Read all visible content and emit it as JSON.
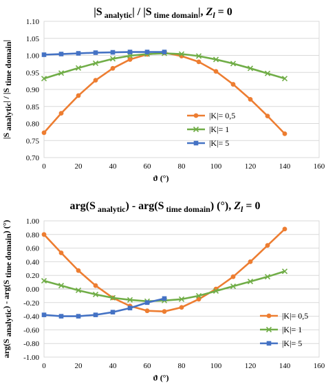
{
  "chart_data": [
    {
      "type": "line",
      "title_main": "|S",
      "title_sub1": "analytic",
      "title_mid": "| / |S",
      "title_sub2": "time domain",
      "title_end": "|, ",
      "title_z": "Z",
      "title_zsub": "l",
      "title_tail": " = 0",
      "ylabel_main": "|S",
      "ylabel_sub1": "analytic",
      "ylabel_mid": "| / |S",
      "ylabel_sub2": "time domain",
      "ylabel_end": "|",
      "xlabel": "ϑ (°)",
      "xlim": [
        0,
        160
      ],
      "ylim": [
        0.7,
        1.1
      ],
      "xticks": [
        0,
        20,
        40,
        60,
        80,
        100,
        120,
        140,
        160
      ],
      "xtick_labels": [
        "0",
        "20",
        "40",
        "60",
        "80",
        "100",
        "120",
        "140",
        "160"
      ],
      "yticks": [
        0.7,
        0.75,
        0.8,
        0.85,
        0.9,
        0.95,
        1.0,
        1.05,
        1.1
      ],
      "ytick_labels": [
        "0.70",
        "0.75",
        "0.80",
        "0.85",
        "0.90",
        "0.95",
        "1.00",
        "1.05",
        "1.10"
      ],
      "grid": "horizontal",
      "legend_position": "bottom-right",
      "series": [
        {
          "name": "|K|= 0,5",
          "color": "#ED7D31",
          "marker": "circle",
          "x": [
            0,
            10,
            20,
            30,
            40,
            50,
            60,
            70,
            80,
            90,
            100,
            110,
            120,
            130,
            140
          ],
          "y": [
            0.773,
            0.83,
            0.882,
            0.927,
            0.962,
            0.988,
            1.003,
            1.008,
            0.998,
            0.981,
            0.953,
            0.915,
            0.871,
            0.822,
            0.77
          ]
        },
        {
          "name": "|K|= 1",
          "color": "#70AD47",
          "marker": "x",
          "x": [
            0,
            10,
            20,
            30,
            40,
            50,
            60,
            70,
            80,
            90,
            100,
            110,
            120,
            130,
            140
          ],
          "y": [
            0.932,
            0.948,
            0.963,
            0.977,
            0.99,
            0.999,
            1.004,
            1.006,
            1.004,
            0.998,
            0.988,
            0.976,
            0.962,
            0.947,
            0.932
          ]
        },
        {
          "name": "|K|= 5",
          "color": "#4472C4",
          "marker": "square",
          "x": [
            0,
            10,
            20,
            30,
            40,
            50,
            60,
            70
          ],
          "y": [
            1.002,
            1.004,
            1.006,
            1.008,
            1.009,
            1.01,
            1.01,
            1.01
          ]
        }
      ]
    },
    {
      "type": "line",
      "title_main": "arg(S",
      "title_sub1": "analytic",
      "title_mid": ") -  arg(S",
      "title_sub2": "time domain",
      "title_end": ") (°), ",
      "title_z": "Z",
      "title_zsub": "l",
      "title_tail": " = 0",
      "ylabel_main": "arg(S",
      "ylabel_sub1": "analytic",
      "ylabel_mid": ") - arg(S",
      "ylabel_sub2": "time domain",
      "ylabel_end": ") (°)",
      "xlabel": "ϑ (°)",
      "xlim": [
        0,
        160
      ],
      "ylim": [
        -1.0,
        1.0
      ],
      "xticks": [
        0,
        20,
        40,
        60,
        80,
        100,
        120,
        140,
        160
      ],
      "xtick_labels": [
        "0",
        "20",
        "40",
        "60",
        "80",
        "100",
        "120",
        "140",
        "160"
      ],
      "yticks": [
        -1.0,
        -0.8,
        -0.6,
        -0.4,
        -0.2,
        0.0,
        0.2,
        0.4,
        0.6,
        0.8,
        1.0
      ],
      "ytick_labels": [
        "-1.00",
        "-0.80",
        "-0.60",
        "-0.40",
        "-0.20",
        "0.00",
        "0.20",
        "0.40",
        "0.60",
        "0.80",
        "1.00"
      ],
      "grid": "horizontal",
      "legend_position": "bottom-right",
      "series": [
        {
          "name": "|K|= 0,5",
          "color": "#ED7D31",
          "marker": "circle",
          "x": [
            0,
            10,
            20,
            30,
            40,
            50,
            60,
            70,
            80,
            90,
            100,
            110,
            120,
            130,
            140
          ],
          "y": [
            0.8,
            0.53,
            0.27,
            0.05,
            -0.13,
            -0.25,
            -0.32,
            -0.33,
            -0.27,
            -0.15,
            0.0,
            0.18,
            0.4,
            0.64,
            0.88
          ]
        },
        {
          "name": "|K|= 1",
          "color": "#70AD47",
          "marker": "x",
          "x": [
            0,
            10,
            20,
            30,
            40,
            50,
            60,
            70,
            80,
            90,
            100,
            110,
            120,
            130,
            140
          ],
          "y": [
            0.12,
            0.05,
            -0.02,
            -0.08,
            -0.13,
            -0.16,
            -0.18,
            -0.17,
            -0.15,
            -0.1,
            -0.03,
            0.04,
            0.11,
            0.18,
            0.26
          ]
        },
        {
          "name": "|K|= 5",
          "color": "#4472C4",
          "marker": "square",
          "x": [
            0,
            10,
            20,
            30,
            40,
            50,
            60,
            70
          ],
          "y": [
            -0.38,
            -0.4,
            -0.4,
            -0.38,
            -0.34,
            -0.28,
            -0.2,
            -0.14
          ]
        }
      ]
    }
  ]
}
